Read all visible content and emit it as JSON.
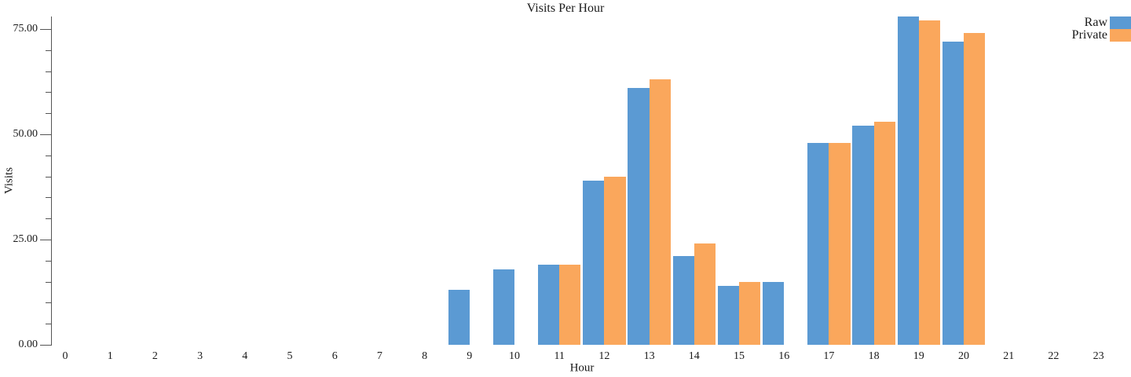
{
  "chart_data": {
    "type": "bar",
    "title": "Visits Per Hour",
    "xlabel": "Hour",
    "ylabel": "Visits",
    "categories": [
      "0",
      "1",
      "2",
      "3",
      "4",
      "5",
      "6",
      "7",
      "8",
      "9",
      "10",
      "11",
      "12",
      "13",
      "14",
      "15",
      "16",
      "17",
      "18",
      "19",
      "20",
      "21",
      "22",
      "23"
    ],
    "series": [
      {
        "name": "Raw",
        "color": "#5b9ad3",
        "values": [
          null,
          null,
          null,
          null,
          null,
          null,
          null,
          null,
          null,
          13,
          18,
          19,
          39,
          61,
          21,
          14,
          15,
          48,
          52,
          78,
          72,
          null,
          null,
          null
        ]
      },
      {
        "name": "Private",
        "color": "#faa75c",
        "values": [
          null,
          null,
          null,
          null,
          null,
          null,
          null,
          null,
          null,
          null,
          null,
          19,
          40,
          63,
          24,
          15,
          null,
          48,
          53,
          77,
          74,
          null,
          null,
          null
        ]
      }
    ],
    "y_ticks": [
      {
        "value": 0,
        "label": "0.00"
      },
      {
        "value": 25,
        "label": "25.00"
      },
      {
        "value": 50,
        "label": "50.00"
      },
      {
        "value": 75,
        "label": "75.00"
      }
    ],
    "y_minor_step": 5,
    "ylim": [
      0,
      78
    ],
    "grid": false,
    "legend_position": "top-right"
  }
}
